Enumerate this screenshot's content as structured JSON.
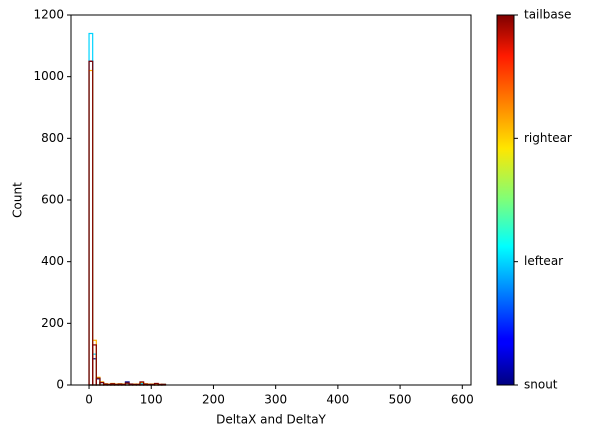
{
  "chart_data": {
    "type": "histogram",
    "xlabel": "DeltaX and DeltaY",
    "ylabel": "Count",
    "xlim": [
      -29,
      614
    ],
    "xticks": [
      0,
      100,
      200,
      300,
      400,
      500,
      600
    ],
    "ylim": [
      0,
      1200
    ],
    "yticks": [
      0,
      200,
      400,
      600,
      800,
      1000,
      1200
    ],
    "bins": [
      0,
      5.85,
      11.7,
      17.55,
      23.4,
      29.25,
      35.1,
      40.95,
      46.8,
      52.65,
      58.5,
      64.35,
      70.2,
      76.05,
      81.9,
      87.75,
      93.6,
      99.45,
      105.3,
      111.15,
      117,
      122.85,
      128.7,
      134.55,
      140.4,
      146.25,
      152.1,
      157.95,
      163.8,
      169.65,
      175.5,
      181.35,
      187.2,
      193.05,
      198.9,
      204.75,
      210.6,
      216.45,
      222.3,
      228.15,
      234,
      239.85,
      245.7,
      251.55,
      257.4,
      263.25,
      269.1,
      274.95,
      280.8,
      286.65,
      292.5,
      298.35,
      304.2,
      310.05,
      315.9,
      321.75,
      327.6,
      333.45,
      339.3,
      345.15,
      351,
      356.85,
      362.7,
      368.55,
      374.4,
      380.25,
      386.1,
      391.95,
      397.8,
      403.65,
      409.5,
      415.35,
      421.2,
      427.05,
      432.9,
      438.75,
      444.6,
      450.45,
      456.3,
      462.15,
      468,
      473.85,
      479.7,
      485.55,
      491.4,
      497.25,
      503.1,
      508.95,
      514.8,
      520.65,
      526.5,
      532.35,
      538.2,
      544.05,
      549.9,
      555.75,
      561.6,
      567.45,
      573.3,
      579.15,
      585
    ],
    "series": [
      {
        "color": "#00007f",
        "values": [
          1050,
          85,
          20,
          8,
          3,
          2,
          4,
          2,
          3,
          2,
          10,
          3,
          2,
          2,
          4,
          3,
          2,
          2,
          3,
          1,
          2,
          0,
          0,
          0,
          0,
          0,
          0,
          0,
          0,
          0,
          0,
          0,
          0,
          0,
          0,
          0,
          0,
          0,
          0,
          0,
          0,
          0,
          0,
          0,
          0,
          0,
          0,
          0,
          0,
          0,
          0,
          0,
          0,
          0,
          0,
          0,
          0,
          0,
          0,
          0,
          0,
          0,
          0,
          0,
          0,
          0,
          0,
          0,
          0,
          0,
          0,
          0,
          0,
          0,
          0,
          0,
          0,
          0,
          0,
          0,
          0,
          0,
          0,
          0,
          0,
          0,
          0,
          0,
          0,
          0,
          0,
          0,
          0,
          0,
          0,
          0,
          0,
          0,
          0,
          0
        ]
      },
      {
        "color": "#00d4ff",
        "values": [
          1140,
          100,
          22,
          8,
          3,
          2,
          4,
          2,
          3,
          2,
          6,
          3,
          2,
          2,
          5,
          3,
          2,
          2,
          3,
          1,
          2,
          0,
          0,
          0,
          0,
          0,
          0,
          0,
          0,
          0,
          0,
          0,
          0,
          0,
          0,
          0,
          0,
          0,
          0,
          0,
          0,
          0,
          0,
          0,
          0,
          0,
          0,
          0,
          0,
          0,
          0,
          0,
          0,
          0,
          0,
          0,
          0,
          0,
          0,
          0,
          0,
          0,
          0,
          0,
          0,
          0,
          0,
          0,
          0,
          0,
          0,
          0,
          0,
          0,
          0,
          0,
          0,
          0,
          0,
          0,
          0,
          0,
          0,
          0,
          0,
          0,
          0,
          0,
          0,
          0,
          0,
          0,
          0,
          0,
          0,
          0,
          0,
          0,
          0,
          0
        ]
      },
      {
        "color": "#ffb000",
        "values": [
          1020,
          145,
          25,
          10,
          4,
          3,
          5,
          3,
          4,
          3,
          6,
          3,
          3,
          3,
          8,
          4,
          3,
          3,
          4,
          2,
          2,
          0,
          0,
          0,
          0,
          0,
          0,
          0,
          0,
          0,
          0,
          0,
          0,
          0,
          0,
          0,
          0,
          0,
          0,
          0,
          0,
          0,
          0,
          0,
          0,
          0,
          0,
          0,
          0,
          0,
          0,
          0,
          0,
          0,
          0,
          0,
          0,
          0,
          0,
          0,
          0,
          0,
          0,
          0,
          0,
          0,
          0,
          0,
          0,
          0,
          0,
          0,
          0,
          0,
          0,
          0,
          0,
          0,
          0,
          0,
          0,
          0,
          0,
          0,
          0,
          0,
          0,
          0,
          0,
          0,
          0,
          0,
          0,
          0,
          0,
          0,
          0,
          0,
          0,
          0
        ]
      },
      {
        "color": "#7f0000",
        "values": [
          1050,
          130,
          22,
          8,
          3,
          2,
          4,
          2,
          3,
          2,
          6,
          3,
          2,
          2,
          10,
          3,
          2,
          2,
          5,
          2,
          2,
          0,
          0,
          0,
          0,
          0,
          0,
          0,
          0,
          0,
          0,
          0,
          0,
          0,
          0,
          0,
          0,
          0,
          0,
          0,
          0,
          0,
          0,
          0,
          0,
          0,
          0,
          0,
          0,
          0,
          0,
          0,
          0,
          0,
          0,
          0,
          0,
          0,
          0,
          0,
          0,
          0,
          0,
          0,
          0,
          0,
          0,
          0,
          0,
          0,
          0,
          0,
          0,
          0,
          0,
          0,
          0,
          0,
          0,
          0,
          0,
          0,
          0,
          0,
          0,
          0,
          0,
          0,
          0,
          0,
          0,
          0,
          0,
          0,
          0,
          0,
          0,
          0,
          0,
          0
        ]
      }
    ],
    "colorbar": {
      "lim": [
        0,
        3
      ],
      "ticks": [
        {
          "value": 0,
          "label": "snout"
        },
        {
          "value": 1,
          "label": "leftear"
        },
        {
          "value": 2,
          "label": "rightear"
        },
        {
          "value": 3,
          "label": "tailbase"
        }
      ]
    }
  }
}
